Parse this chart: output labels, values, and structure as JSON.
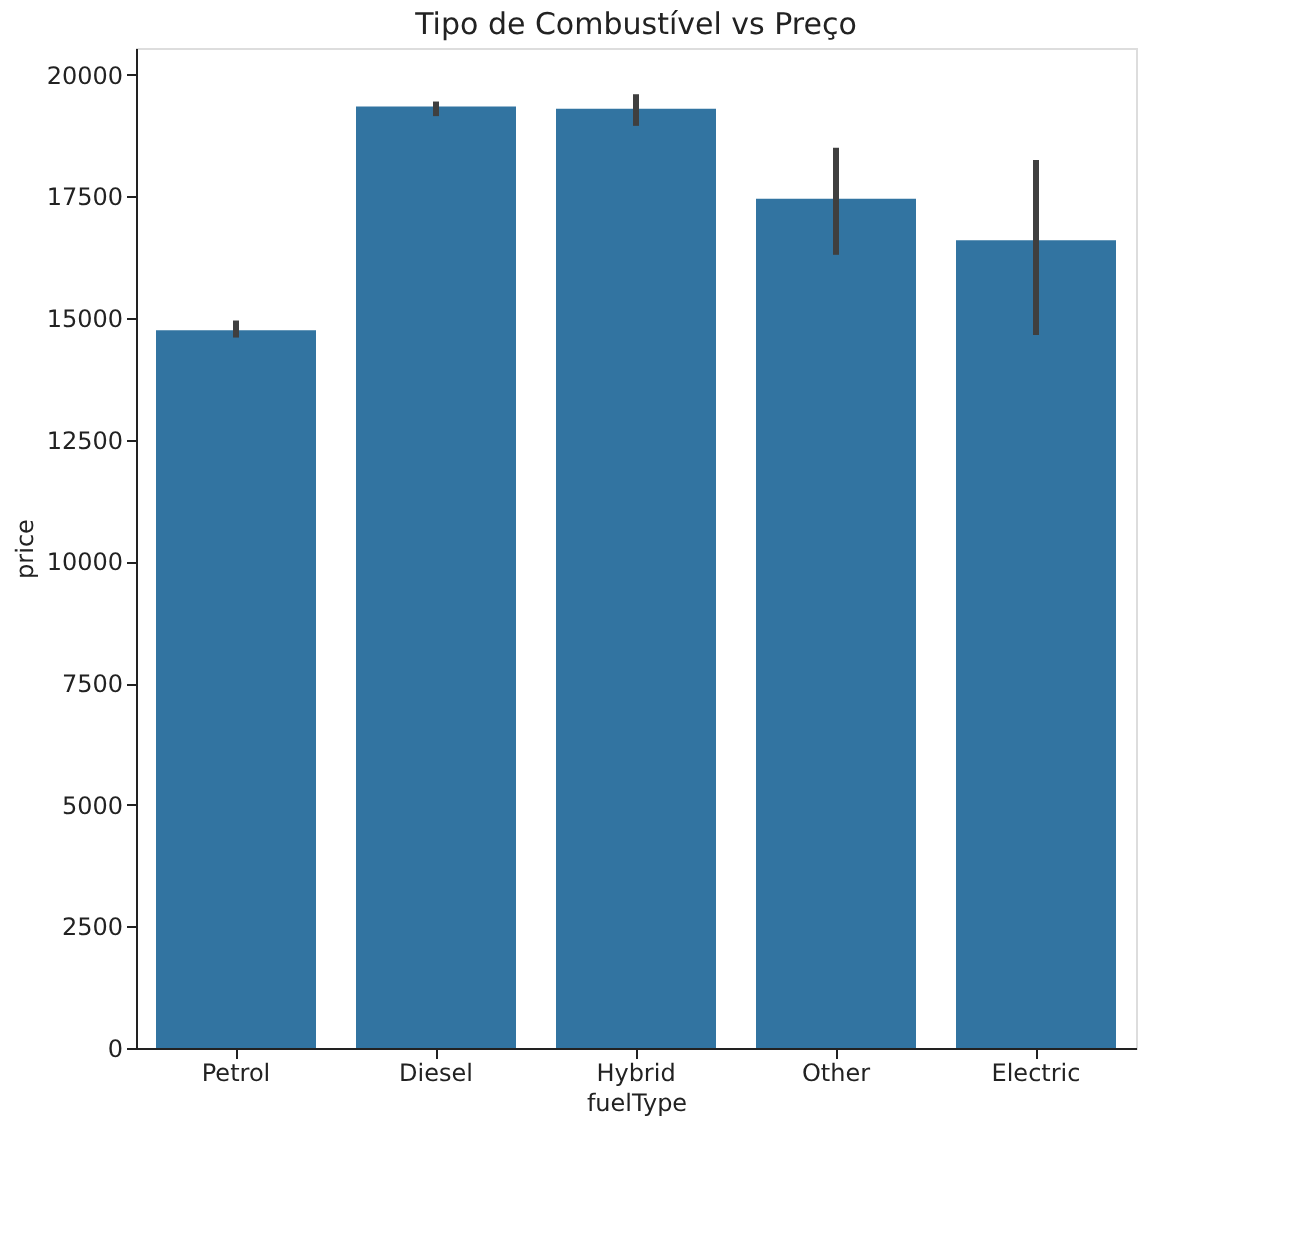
{
  "chart_data": {
    "type": "bar",
    "title": "Tipo de Combustível vs Preço",
    "xlabel": "fuelType",
    "ylabel": "price",
    "categories": [
      "Petrol",
      "Diesel",
      "Hybrid",
      "Other",
      "Electric"
    ],
    "series": [
      {
        "color": "#3274a1",
        "values": [
          14750,
          19350,
          19300,
          17450,
          16600
        ],
        "errors": [
          [
            14600,
            14950
          ],
          [
            19150,
            19450
          ],
          [
            18950,
            19600
          ],
          [
            16300,
            18500
          ],
          [
            14650,
            18250
          ]
        ]
      }
    ],
    "ylim": [
      0,
      20550
    ],
    "yticks": [
      0,
      2500,
      5000,
      7500,
      10000,
      12500,
      15000,
      17500,
      20000
    ],
    "grid": false
  }
}
